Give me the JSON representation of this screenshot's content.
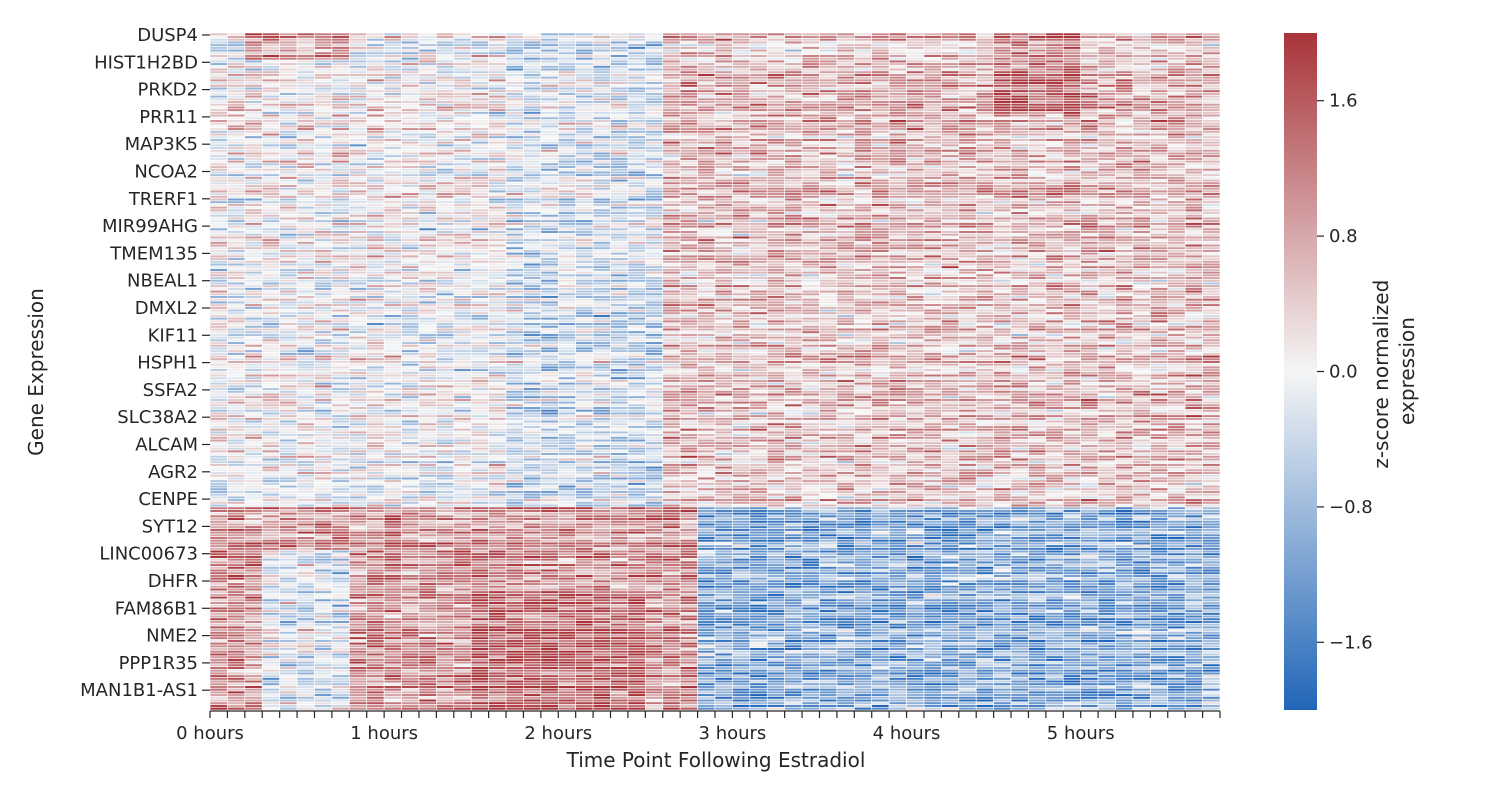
{
  "chart_data": {
    "type": "heatmap",
    "title": "",
    "xlabel": "Time Point Following Estradiol",
    "ylabel": "Gene Expression",
    "colorbar_label": [
      "z-score normalized",
      "expression"
    ],
    "x_tick_labels": [
      "0 hours",
      "1 hours",
      "2 hours",
      "3 hours",
      "4 hours",
      "5 hours"
    ],
    "x_tick_columns": [
      0,
      10,
      20,
      30,
      40,
      50
    ],
    "n_columns": 58,
    "y_tick_labels": [
      "DUSP4",
      "HIST1H2BD",
      "PRKD2",
      "PRR11",
      "MAP3K5",
      "NCOA2",
      "TRERF1",
      "MIR99AHG",
      "TMEM135",
      "NBEAL1",
      "DMXL2",
      "KIF11",
      "HSPH1",
      "SSFA2",
      "SLC38A2",
      "ALCAM",
      "AGR2",
      "CENPE",
      "SYT12",
      "LINC00673",
      "DHFR",
      "FAM86B1",
      "NME2",
      "PPP1R35",
      "MAN1B1-AS1"
    ],
    "color_range": [
      -2.0,
      2.0
    ],
    "colorbar_ticks": [
      1.6,
      0.8,
      0.0,
      -0.8,
      -1.6
    ],
    "colorbar_tick_labels": [
      "1.6",
      "0.8",
      "0.0",
      "−0.8",
      "−1.6"
    ],
    "colormap": {
      "low": "#2166b8",
      "mid": "#f5f5f5",
      "high": "#a8343a"
    },
    "grid_line_color": "#ffffff",
    "row_blocks": [
      {
        "genes": "DUSP4 – CENPE",
        "pattern": "induced late (low at 0–2 hours, high after 3 hours)"
      },
      {
        "genes": "SYT12 – MAN1B1-AS1",
        "pattern": "repressed (high at 0–2 hours, low after 3 hours)"
      }
    ]
  }
}
